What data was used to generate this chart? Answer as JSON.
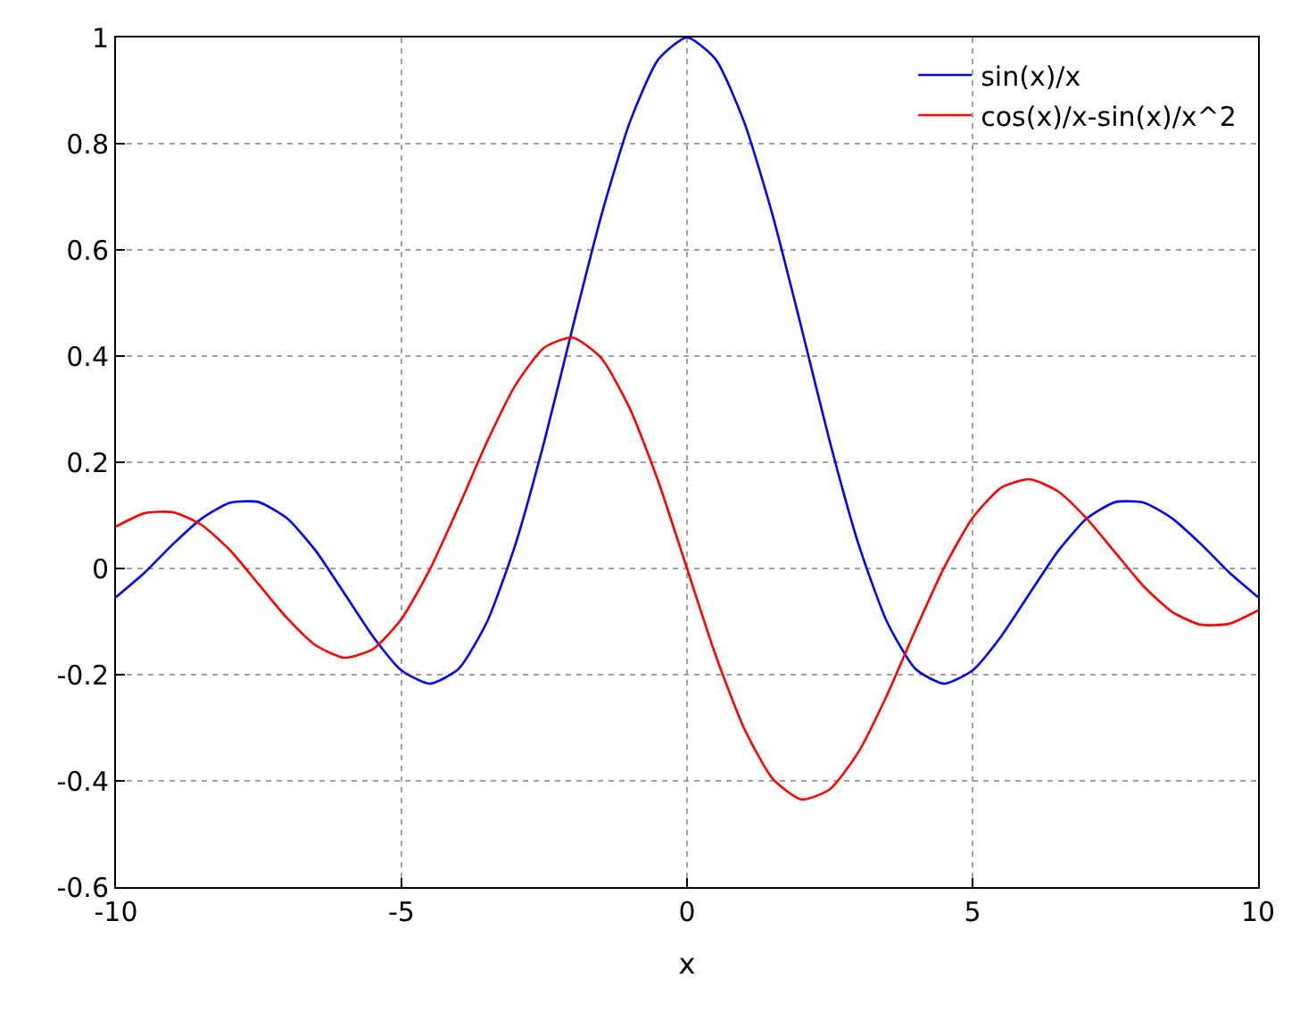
{
  "chart_data": {
    "type": "line",
    "xlabel": "x",
    "x": [
      -10,
      -9.5,
      -9,
      -8.5,
      -8,
      -7.5,
      -7,
      -6.5,
      -6,
      -5.5,
      -5,
      -4.5,
      -4,
      -3.5,
      -3,
      -2.5,
      -2,
      -1.5,
      -1,
      -0.5,
      0,
      0.5,
      1,
      1.5,
      2,
      2.5,
      3,
      3.5,
      4,
      4.5,
      5,
      5.5,
      6,
      6.5,
      7,
      7.5,
      8,
      8.5,
      9,
      9.5,
      10
    ],
    "series": [
      {
        "name": "sin(x)/x",
        "color": "#0000ff",
        "values": [
          -0.054,
          -0.008,
          0.046,
          0.094,
          0.124,
          0.125,
          0.094,
          0.033,
          -0.047,
          -0.128,
          -0.192,
          -0.217,
          -0.189,
          -0.1,
          0.047,
          0.239,
          0.455,
          0.665,
          0.841,
          0.959,
          1,
          0.959,
          0.841,
          0.665,
          0.455,
          0.239,
          0.047,
          -0.1,
          -0.189,
          -0.217,
          -0.192,
          -0.128,
          -0.047,
          0.033,
          0.094,
          0.125,
          0.124,
          0.094,
          0.046,
          -0.008,
          -0.054
        ]
      },
      {
        "name": "cos(x)/x-sin(x)/x^2",
        "color": "#ff0000",
        "values": [
          0.079,
          0.104,
          0.106,
          0.082,
          0.034,
          -0.03,
          -0.094,
          -0.145,
          -0.168,
          -0.152,
          -0.095,
          -0.001,
          0.116,
          0.239,
          0.346,
          0.416,
          0.435,
          0.396,
          0.301,
          0.163,
          0,
          -0.163,
          -0.301,
          -0.396,
          -0.435,
          -0.416,
          -0.346,
          -0.239,
          -0.116,
          0.001,
          0.095,
          0.152,
          0.168,
          0.145,
          0.094,
          0.03,
          -0.034,
          -0.082,
          -0.106,
          -0.104,
          -0.079
        ]
      }
    ],
    "xlim": [
      -10,
      10
    ],
    "xticks": [
      -10,
      -5,
      0,
      5,
      10
    ],
    "ylim": [
      -0.6,
      1
    ],
    "yticks": [
      -0.6,
      -0.4,
      -0.2,
      0,
      0.2,
      0.4,
      0.6,
      0.8,
      1
    ],
    "grid": true,
    "legend": "top right",
    "line_style": "solid",
    "marker": "none"
  }
}
